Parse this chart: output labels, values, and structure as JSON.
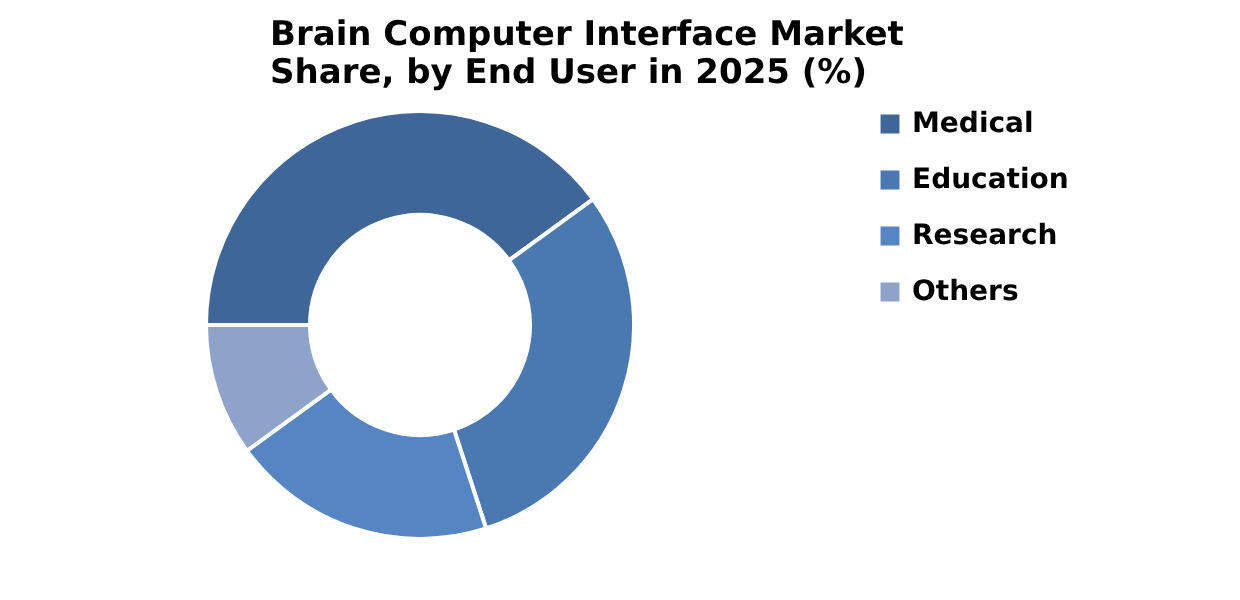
{
  "chart_data": {
    "type": "donut",
    "title": [
      "Brain Computer Interface Market",
      "Share, by End User in 2025 (%)"
    ],
    "categories": [
      "Medical",
      "Education",
      "Research",
      "Others"
    ],
    "values": [
      40,
      30,
      20,
      10
    ],
    "colors": [
      "#3f6698",
      "#4a78b0",
      "#5585c2",
      "#8fa2c9"
    ],
    "legend": "right"
  }
}
